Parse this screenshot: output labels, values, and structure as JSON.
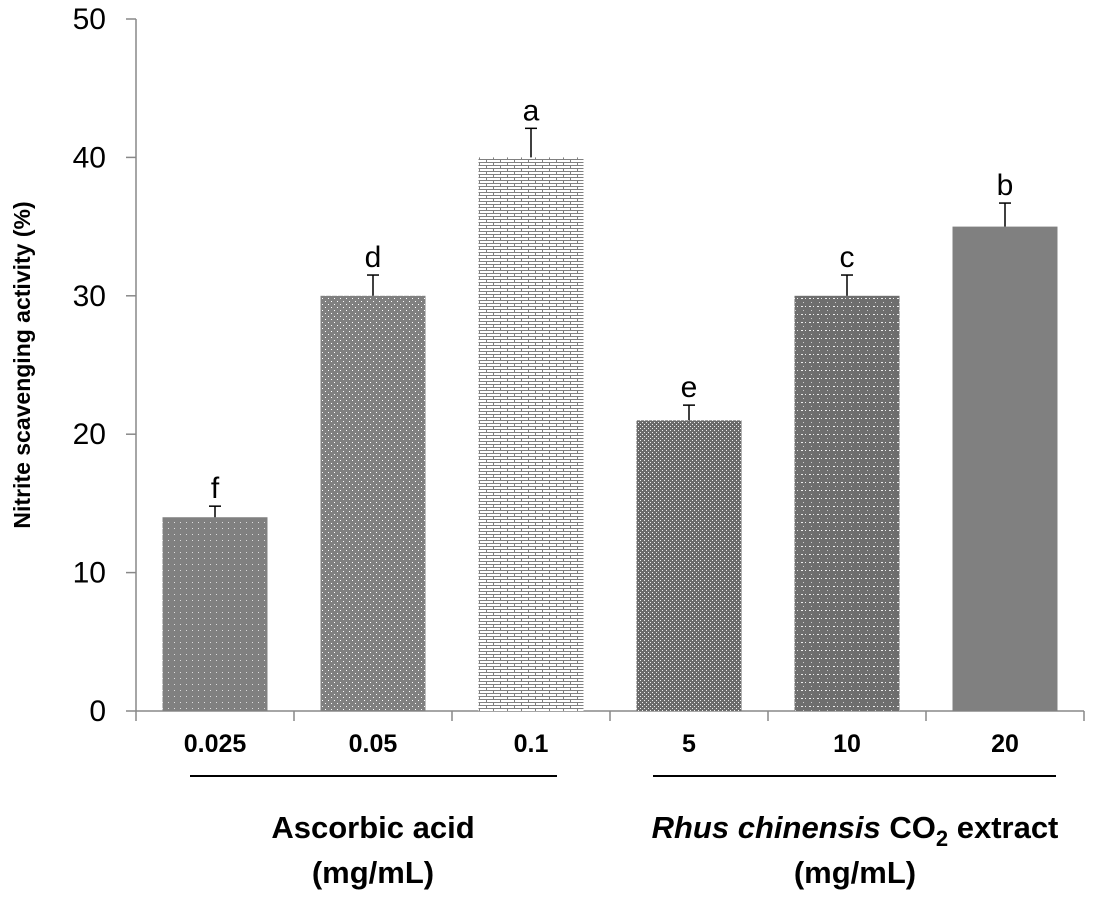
{
  "chart_data": {
    "type": "bar",
    "title": "",
    "xlabel": "",
    "ylabel": "Nitrite scavenging activity (%)",
    "ylim": [
      0,
      50
    ],
    "yticks": [
      "0",
      "10",
      "20",
      "30",
      "40",
      "50"
    ],
    "grid": false,
    "categories": [
      "0.025",
      "0.05",
      "0.1",
      "5",
      "10",
      "20"
    ],
    "values": [
      14,
      30,
      40,
      21,
      30,
      35
    ],
    "errors": [
      0.8,
      1.5,
      2.1,
      1.1,
      1.5,
      1.7
    ],
    "significance_letters": [
      "f",
      "d",
      "a",
      "e",
      "c",
      "b"
    ],
    "fill_patterns": [
      "checker-dots",
      "white-dots",
      "brick",
      "diamond-lattice",
      "wave-dots",
      "solid-speckle"
    ],
    "bar_color": "#808080",
    "groups": [
      {
        "name": "Ascorbic acid",
        "unit": "(mg/mL)",
        "categories": [
          "0.025",
          "0.05",
          "0.1"
        ]
      },
      {
        "name_italic": "Rhus chinensis",
        "name_rest": " CO",
        "subscript": "2",
        "name_suffix": " extract",
        "unit": "(mg/mL)",
        "categories": [
          "5",
          "10",
          "20"
        ]
      }
    ]
  }
}
